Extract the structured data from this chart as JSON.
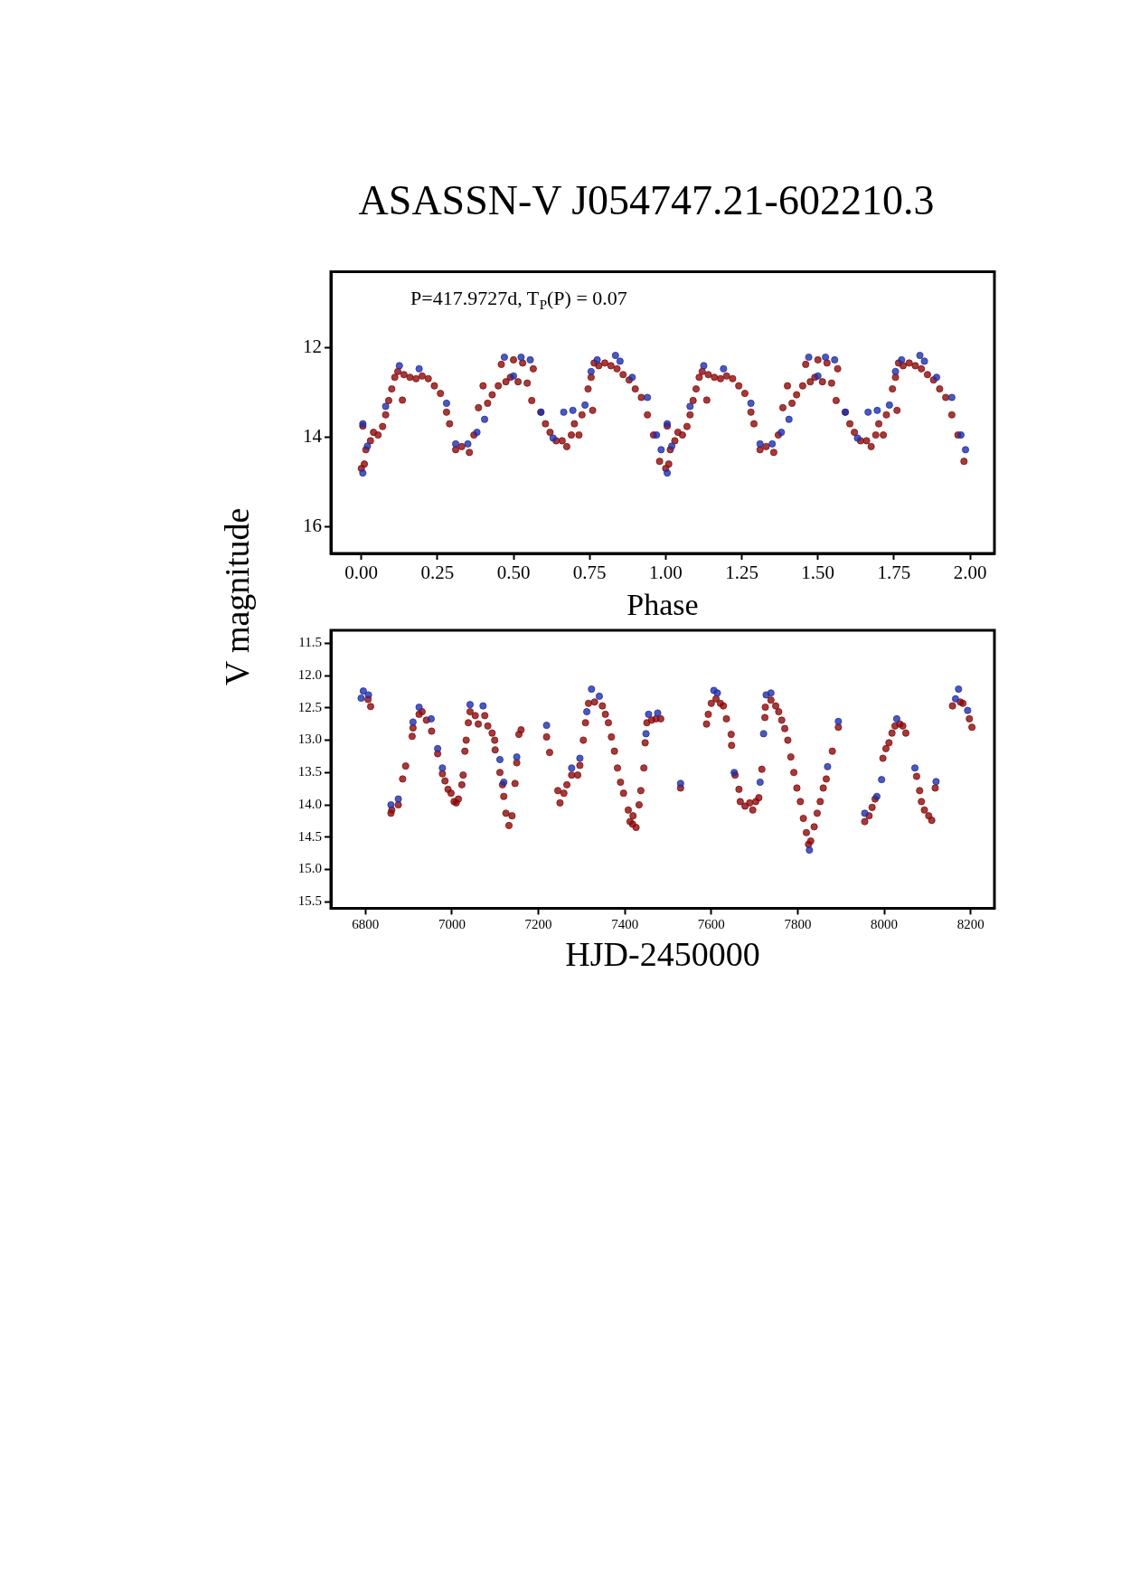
{
  "chart_data": [
    {
      "type": "scatter",
      "title": "ASASSN-V J054747.21-602210.3",
      "ylabel": "V magnitude",
      "xlabel": "Phase",
      "annotations": [
        "P=417.9727d, T$_{P}$(P) = 0.07"
      ],
      "marker": "circle",
      "xlim": [
        -0.1,
        2.08
      ],
      "ylim": [
        16.6,
        10.3
      ],
      "xticks": [
        {
          "value": 0,
          "label": "0.00"
        },
        {
          "value": 0.25,
          "label": "0.25"
        },
        {
          "value": 0.5,
          "label": "0.50"
        },
        {
          "value": 0.75,
          "label": "0.75"
        },
        {
          "value": 1,
          "label": "1.00"
        },
        {
          "value": 1.25,
          "label": "1.25"
        },
        {
          "value": 1.5,
          "label": "1.50"
        },
        {
          "value": 1.75,
          "label": "1.75"
        },
        {
          "value": 2,
          "label": "2.00"
        }
      ],
      "yticks": [
        12,
        14,
        16
      ],
      "series": [
        {
          "color": "#1f2fa8",
          "x": [
            0.005,
            0.005,
            0.02,
            0.08,
            0.125,
            0.19,
            0.28,
            0.31,
            0.35,
            0.38,
            0.405,
            0.47,
            0.5,
            0.525,
            0.555,
            0.59,
            0.63,
            0.665,
            0.695,
            0.735,
            0.755,
            0.775,
            0.835,
            0.85,
            0.89,
            0.94,
            0.97,
            0.985,
            1.005,
            1.005,
            1.02,
            1.08,
            1.125,
            1.19,
            1.28,
            1.31,
            1.35,
            1.38,
            1.405,
            1.47,
            1.5,
            1.525,
            1.555,
            1.59,
            1.63,
            1.665,
            1.695,
            1.735,
            1.755,
            1.775,
            1.835,
            1.85,
            1.89,
            1.94,
            1.97,
            1.985
          ],
          "values": [
            13.7,
            14.8,
            14.2,
            13.31,
            12.4,
            12.47,
            13.24,
            14.15,
            14.15,
            13.89,
            13.6,
            12.21,
            12.63,
            12.21,
            12.27,
            13.44,
            14.02,
            13.44,
            13.4,
            13.28,
            12.53,
            12.27,
            12.17,
            12.3,
            12.66,
            13.11,
            13.95,
            14.28,
            13.7,
            14.8,
            14.2,
            13.31,
            12.4,
            12.47,
            13.24,
            14.15,
            14.15,
            13.89,
            13.6,
            12.21,
            12.63,
            12.21,
            12.27,
            13.44,
            14.02,
            13.44,
            13.4,
            13.28,
            12.53,
            12.27,
            12.17,
            12.3,
            12.66,
            13.11,
            13.95,
            14.28
          ]
        },
        {
          "color": "#8b0a0a",
          "x": [
            0,
            0.005,
            0.01,
            0.015,
            0.03,
            0.04,
            0.055,
            0.07,
            0.08,
            0.09,
            0.1,
            0.11,
            0.12,
            0.135,
            0.14,
            0.16,
            0.18,
            0.2,
            0.22,
            0.24,
            0.26,
            0.28,
            0.29,
            0.31,
            0.33,
            0.355,
            0.37,
            0.385,
            0.4,
            0.415,
            0.43,
            0.45,
            0.46,
            0.475,
            0.49,
            0.5,
            0.515,
            0.53,
            0.545,
            0.56,
            0.565,
            0.59,
            0.605,
            0.62,
            0.64,
            0.66,
            0.675,
            0.69,
            0.7,
            0.715,
            0.725,
            0.745,
            0.755,
            0.76,
            0.765,
            0.78,
            0.8,
            0.82,
            0.84,
            0.86,
            0.88,
            0.9,
            0.92,
            0.94,
            0.96,
            0.98,
            1,
            1.005,
            1.01,
            1.015,
            1.03,
            1.04,
            1.055,
            1.07,
            1.08,
            1.09,
            1.1,
            1.11,
            1.12,
            1.135,
            1.14,
            1.16,
            1.18,
            1.2,
            1.22,
            1.24,
            1.26,
            1.28,
            1.29,
            1.31,
            1.33,
            1.355,
            1.37,
            1.385,
            1.4,
            1.415,
            1.43,
            1.45,
            1.46,
            1.475,
            1.49,
            1.5,
            1.515,
            1.53,
            1.545,
            1.56,
            1.565,
            1.59,
            1.605,
            1.62,
            1.64,
            1.66,
            1.675,
            1.69,
            1.7,
            1.715,
            1.725,
            1.745,
            1.755,
            1.76,
            1.765,
            1.78,
            1.8,
            1.82,
            1.84,
            1.86,
            1.88,
            1.9,
            1.92,
            1.94,
            1.96,
            1.98
          ],
          "values": [
            14.7,
            13.75,
            14.6,
            14.28,
            14.08,
            13.89,
            13.95,
            13.76,
            13.5,
            13.18,
            12.92,
            12.66,
            12.53,
            13.17,
            12.6,
            12.66,
            12.69,
            12.63,
            12.69,
            12.85,
            13.02,
            13.44,
            13.7,
            14.28,
            14.21,
            14.34,
            13.95,
            13.34,
            12.85,
            13.24,
            13.05,
            12.85,
            12.37,
            12.76,
            12.66,
            12.27,
            12.76,
            12.34,
            12.79,
            13.18,
            12.47,
            13.44,
            13.7,
            13.89,
            14.08,
            14.08,
            14.21,
            13.95,
            13.7,
            13.95,
            13.5,
            12.92,
            12.66,
            13.4,
            12.34,
            12.4,
            12.34,
            12.4,
            12.47,
            12.6,
            12.72,
            12.92,
            13.11,
            13.5,
            13.95,
            14.54,
            14.7,
            13.75,
            14.6,
            14.28,
            14.08,
            13.89,
            13.95,
            13.76,
            13.5,
            13.18,
            12.92,
            12.66,
            12.53,
            13.17,
            12.6,
            12.66,
            12.69,
            12.63,
            12.69,
            12.85,
            13.02,
            13.44,
            13.7,
            14.28,
            14.21,
            14.34,
            13.95,
            13.34,
            12.85,
            13.24,
            13.05,
            12.85,
            12.37,
            12.76,
            12.66,
            12.27,
            12.76,
            12.34,
            12.79,
            13.18,
            12.47,
            13.44,
            13.7,
            13.89,
            14.08,
            14.08,
            14.21,
            13.95,
            13.7,
            13.95,
            13.5,
            12.92,
            12.66,
            13.4,
            12.34,
            12.4,
            12.34,
            12.4,
            12.47,
            12.6,
            12.72,
            12.92,
            13.11,
            13.5,
            13.95,
            14.54
          ]
        }
      ]
    },
    {
      "type": "scatter",
      "xlabel": "HJD-2450000",
      "marker": "circle",
      "xlim": [
        6720,
        8255
      ],
      "ylim": [
        15.6,
        11.3
      ],
      "xticks": [
        6800,
        7000,
        7200,
        7400,
        7600,
        7800,
        8000,
        8200
      ],
      "yticks": [
        {
          "value": 11.5,
          "label": "11.5"
        },
        {
          "value": 12,
          "label": "12.0"
        },
        {
          "value": 12.5,
          "label": "12.5"
        },
        {
          "value": 13,
          "label": "13.0"
        },
        {
          "value": 13.5,
          "label": "13.5"
        },
        {
          "value": 14,
          "label": "14.0"
        },
        {
          "value": 14.5,
          "label": "14.5"
        },
        {
          "value": 15,
          "label": "15.0"
        },
        {
          "value": 15.5,
          "label": "15.5"
        }
      ],
      "series": [
        {
          "color": "#1f2fa8",
          "x": [
            6790,
            6795,
            6807,
            6859,
            6876,
            6910,
            6924,
            6952,
            6967,
            6978,
            7042,
            7072,
            7111,
            7120,
            7150,
            7219,
            7277,
            7296,
            7312,
            7323,
            7341,
            7449,
            7455,
            7476,
            7529,
            7606,
            7614,
            7653,
            7713,
            7721,
            7727,
            7738,
            7827,
            7869,
            7894,
            7955,
            7983,
            7994,
            8029,
            8071,
            8120,
            8165,
            8172,
            8193
          ],
          "values": [
            12.35,
            12.24,
            12.3,
            14.0,
            13.91,
            12.72,
            12.49,
            12.67,
            13.13,
            13.43,
            12.45,
            12.47,
            13.3,
            13.65,
            13.26,
            12.77,
            13.43,
            13.28,
            12.56,
            12.21,
            12.32,
            12.9,
            12.6,
            12.58,
            13.67,
            12.23,
            12.27,
            13.5,
            13.65,
            12.9,
            12.3,
            12.27,
            14.7,
            13.41,
            12.71,
            14.13,
            13.87,
            13.61,
            12.67,
            13.43,
            13.64,
            12.36,
            12.21,
            12.54
          ]
        },
        {
          "color": "#8b0a0a",
          "x": [
            6806,
            6812,
            6859,
            6861,
            6876,
            6886,
            6893,
            6908,
            6910,
            6924,
            6931,
            6941,
            6953,
            6967,
            6978,
            6984,
            6991,
            6998,
            7005,
            7010,
            7015,
            7023,
            7026,
            7030,
            7033,
            7038,
            7042,
            7054,
            7061,
            7076,
            7083,
            7093,
            7099,
            7100,
            7111,
            7117,
            7120,
            7125,
            7132,
            7139,
            7146,
            7150,
            7155,
            7160,
            7219,
            7226,
            7245,
            7250,
            7259,
            7266,
            7277,
            7291,
            7296,
            7304,
            7309,
            7316,
            7330,
            7348,
            7355,
            7362,
            7369,
            7376,
            7383,
            7390,
            7397,
            7408,
            7412,
            7418,
            7419,
            7426,
            7433,
            7437,
            7444,
            7447,
            7451,
            7462,
            7472,
            7483,
            7529,
            7589,
            7593,
            7600,
            7611,
            7621,
            7628,
            7635,
            7646,
            7647,
            7655,
            7664,
            7667,
            7678,
            7689,
            7696,
            7703,
            7710,
            7717,
            7724,
            7725,
            7738,
            7749,
            7756,
            7763,
            7770,
            7777,
            7784,
            7791,
            7798,
            7806,
            7813,
            7820,
            7825,
            7830,
            7838,
            7845,
            7852,
            7859,
            7866,
            7880,
            7894,
            7955,
            7965,
            7972,
            7979,
            7997,
            8004,
            8011,
            8018,
            8025,
            8036,
            8043,
            8050,
            8075,
            8082,
            8086,
            8093,
            8103,
            8110,
            8118,
            8158,
            8176,
            8182,
            8197,
            8203
          ],
          "values": [
            12.37,
            12.48,
            14.13,
            14.08,
            14.0,
            13.6,
            13.4,
            12.94,
            12.81,
            12.6,
            12.56,
            12.69,
            12.86,
            13.21,
            13.52,
            13.63,
            13.76,
            13.82,
            13.95,
            13.97,
            13.91,
            13.69,
            13.54,
            13.17,
            13.0,
            12.73,
            12.56,
            12.62,
            12.75,
            12.62,
            12.78,
            12.89,
            13.0,
            13.15,
            13.5,
            13.69,
            13.87,
            14.13,
            14.32,
            14.17,
            13.67,
            13.35,
            12.91,
            12.84,
            12.95,
            13.19,
            13.78,
            13.97,
            13.82,
            13.69,
            13.54,
            13.54,
            13.39,
            13.0,
            12.73,
            12.43,
            12.41,
            12.47,
            12.6,
            12.73,
            12.95,
            13.17,
            13.43,
            13.65,
            13.82,
            14.08,
            14.26,
            14.3,
            14.17,
            14.35,
            14.0,
            13.78,
            13.43,
            13.04,
            12.73,
            12.69,
            12.67,
            12.67,
            13.74,
            12.75,
            12.6,
            12.43,
            12.36,
            12.43,
            12.47,
            12.67,
            12.91,
            13.08,
            13.54,
            13.76,
            13.95,
            14.02,
            13.97,
            14.08,
            13.95,
            13.89,
            13.45,
            12.65,
            12.49,
            12.38,
            12.47,
            12.56,
            12.69,
            12.82,
            13.0,
            13.26,
            13.5,
            13.74,
            13.95,
            14.21,
            14.43,
            14.61,
            14.56,
            14.34,
            14.13,
            13.95,
            13.74,
            13.6,
            13.17,
            12.8,
            14.26,
            14.17,
            14.04,
            13.91,
            13.28,
            13.13,
            13.04,
            12.89,
            12.78,
            12.75,
            12.78,
            12.89,
            13.56,
            13.78,
            13.95,
            14.08,
            14.17,
            14.24,
            13.74,
            12.47,
            12.41,
            12.43,
            12.67,
            12.8
          ]
        }
      ]
    }
  ]
}
